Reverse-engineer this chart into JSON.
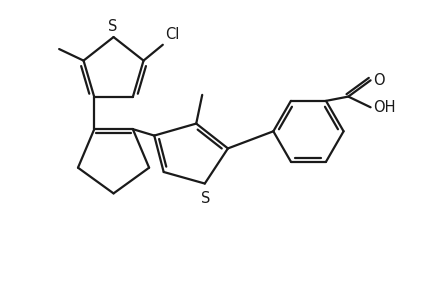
{
  "background_color": "#ffffff",
  "line_color": "#1a1a1a",
  "line_width": 1.6,
  "font_size": 10.5,
  "figsize": [
    4.37,
    2.84
  ],
  "dpi": 100,
  "xlim": [
    0,
    10
  ],
  "ylim": [
    0,
    6.5
  ]
}
